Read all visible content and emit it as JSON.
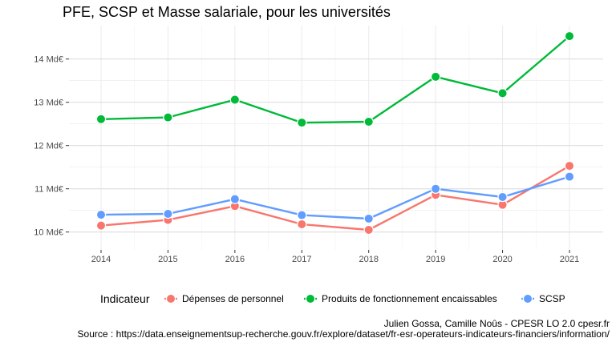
{
  "chart_data": {
    "type": "line",
    "title": "PFE, SCSP et Masse salariale, pour les universités",
    "xlabel": "",
    "ylabel": "",
    "x": [
      2014,
      2015,
      2016,
      2017,
      2018,
      2019,
      2020,
      2021
    ],
    "x_tick_labels": [
      "2014",
      "2015",
      "2016",
      "2017",
      "2018",
      "2019",
      "2020",
      "2021"
    ],
    "ylim": [
      9.6,
      14.9
    ],
    "y_ticks": [
      10,
      11,
      12,
      13,
      14
    ],
    "y_tick_labels": [
      "10 Md€",
      "11 Md€",
      "12 Md€",
      "13 Md€",
      "14 Md€"
    ],
    "grid": true,
    "legend_title": "Indicateur",
    "legend_position": "bottom",
    "series": [
      {
        "name": "Dépenses de personnel",
        "color": "#F8766D",
        "values": [
          10.15,
          10.28,
          10.6,
          10.18,
          10.05,
          10.86,
          10.63,
          11.53
        ]
      },
      {
        "name": "Produits de fonctionnement encaissables",
        "color": "#00BA38",
        "values": [
          12.61,
          12.65,
          13.06,
          12.53,
          12.55,
          13.59,
          13.21,
          14.53
        ]
      },
      {
        "name": "SCSP",
        "color": "#619CFF",
        "values": [
          10.4,
          10.42,
          10.76,
          10.39,
          10.31,
          11.0,
          10.81,
          11.28
        ]
      }
    ],
    "caption_line1": "Julien Gossa, Camille Noûs - CPESR LO 2.0 cpesr.fr",
    "caption_line2": "Source : https://data.enseignementsup-recherche.gouv.fr/explore/dataset/fr-esr-operateurs-indicateurs-financiers/information/"
  }
}
